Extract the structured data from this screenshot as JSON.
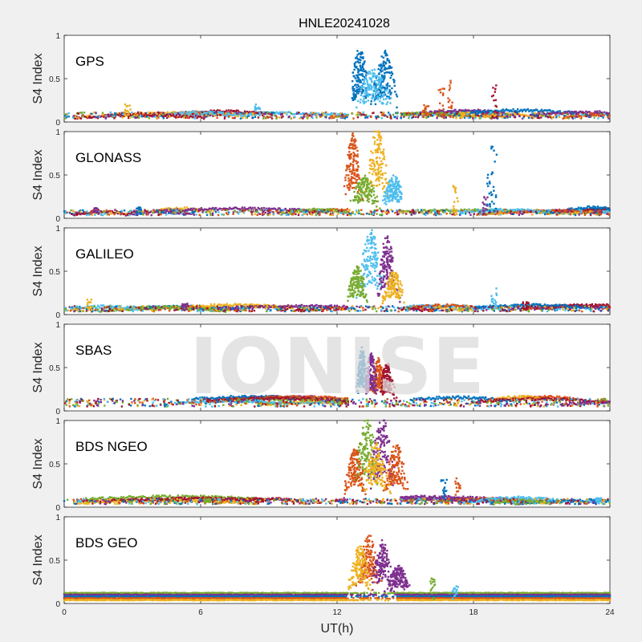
{
  "title": "HNLE20241028",
  "xlabel": "UT(h)",
  "watermark": "IONISE",
  "colors": [
    "#0072BD",
    "#D95319",
    "#EDB120",
    "#7E2F8E",
    "#77AC30",
    "#4DBEEE",
    "#A2142F"
  ],
  "chart_data": {
    "type": "scatter",
    "xlim": [
      0,
      24
    ],
    "xticks": [
      0,
      6,
      12,
      18,
      24
    ],
    "xtick_labels": [
      "0",
      "6",
      "12",
      "18",
      "24"
    ],
    "ylim": [
      0,
      1
    ],
    "yticks": [
      0,
      0.5,
      1
    ],
    "ytick_labels": [
      "0",
      "0.5",
      "1"
    ],
    "grid": false,
    "panels": [
      {
        "label": "GPS",
        "ylabel": "S4 Index",
        "baseline": 0.08,
        "storm": [
          {
            "center": 13.0,
            "width": 0.45,
            "amp": 0.65,
            "color": 0
          },
          {
            "center": 14.1,
            "width": 0.55,
            "amp": 0.62,
            "color": 0
          },
          {
            "center": 13.6,
            "width": 0.8,
            "amp": 0.45,
            "color": 5
          }
        ],
        "spikes": [
          {
            "x": 15.9,
            "peak": 0.2,
            "color": 1
          },
          {
            "x": 16.6,
            "peak": 0.42,
            "color": 1
          },
          {
            "x": 17.0,
            "peak": 0.48,
            "color": 1
          },
          {
            "x": 17.5,
            "peak": 0.12,
            "color": 2
          },
          {
            "x": 18.9,
            "peak": 0.45,
            "color": 6
          },
          {
            "x": 2.8,
            "peak": 0.22,
            "color": 2
          },
          {
            "x": 8.5,
            "peak": 0.22,
            "color": 5
          }
        ]
      },
      {
        "label": "GLONASS",
        "ylabel": "S4 Index",
        "baseline": 0.07,
        "storm": [
          {
            "center": 12.7,
            "width": 0.4,
            "amp": 0.75,
            "color": 1
          },
          {
            "center": 13.8,
            "width": 0.5,
            "amp": 0.85,
            "color": 2
          },
          {
            "center": 14.5,
            "width": 0.5,
            "amp": 0.35,
            "color": 5
          },
          {
            "center": 13.2,
            "width": 0.6,
            "amp": 0.35,
            "color": 4
          }
        ],
        "spikes": [
          {
            "x": 17.2,
            "peak": 0.38,
            "color": 2
          },
          {
            "x": 18.5,
            "peak": 0.25,
            "color": 3
          },
          {
            "x": 18.9,
            "peak": 0.85,
            "color": 0
          },
          {
            "x": 18.7,
            "peak": 0.55,
            "color": 0
          },
          {
            "x": 1.4,
            "peak": 0.12,
            "color": 3
          },
          {
            "x": 3.3,
            "peak": 0.14,
            "color": 0
          }
        ]
      },
      {
        "label": "GALILEO",
        "ylabel": "S4 Index",
        "baseline": 0.07,
        "storm": [
          {
            "center": 13.5,
            "width": 0.6,
            "amp": 0.75,
            "color": 5
          },
          {
            "center": 14.2,
            "width": 0.45,
            "amp": 0.7,
            "color": 3
          },
          {
            "center": 12.9,
            "width": 0.45,
            "amp": 0.4,
            "color": 4
          },
          {
            "center": 14.5,
            "width": 0.5,
            "amp": 0.35,
            "color": 2
          }
        ],
        "spikes": [
          {
            "x": 1.1,
            "peak": 0.18,
            "color": 2
          },
          {
            "x": 18.9,
            "peak": 0.35,
            "color": 5
          },
          {
            "x": 20.3,
            "peak": 0.15,
            "color": 6
          },
          {
            "x": 5.3,
            "peak": 0.14,
            "color": 3
          }
        ]
      },
      {
        "label": "SBAS",
        "ylabel": "S4 Index",
        "baseline": 0.1,
        "storm": [
          {
            "center": 13.1,
            "width": 0.25,
            "amp": 0.55,
            "color": 0
          },
          {
            "center": 13.8,
            "width": 0.35,
            "amp": 0.45,
            "color": 1
          },
          {
            "center": 14.2,
            "width": 0.35,
            "amp": 0.4,
            "color": 6
          },
          {
            "center": 13.5,
            "width": 0.3,
            "amp": 0.5,
            "color": 3
          }
        ],
        "spikes": []
      },
      {
        "label": "BDS NGEO",
        "ylabel": "S4 Index",
        "baseline": 0.07,
        "storm": [
          {
            "center": 13.3,
            "width": 0.55,
            "amp": 0.8,
            "color": 4
          },
          {
            "center": 14.0,
            "width": 0.6,
            "amp": 0.8,
            "color": 3
          },
          {
            "center": 12.8,
            "width": 0.45,
            "amp": 0.5,
            "color": 1
          },
          {
            "center": 14.6,
            "width": 0.5,
            "amp": 0.55,
            "color": 1
          },
          {
            "center": 13.7,
            "width": 0.6,
            "amp": 0.55,
            "color": 2
          }
        ],
        "spikes": [
          {
            "x": 16.7,
            "peak": 0.32,
            "color": 0
          },
          {
            "x": 17.3,
            "peak": 0.35,
            "color": 1
          },
          {
            "x": 6.3,
            "peak": 0.1,
            "color": 4
          },
          {
            "x": 23.5,
            "peak": 0.12,
            "color": 5
          }
        ]
      },
      {
        "label": "BDS GEO",
        "ylabel": "S4 Index",
        "baseline": 0.1,
        "storm": [
          {
            "center": 13.4,
            "width": 0.5,
            "amp": 0.6,
            "color": 1
          },
          {
            "center": 14.0,
            "width": 0.45,
            "amp": 0.55,
            "color": 3
          },
          {
            "center": 13.0,
            "width": 0.45,
            "amp": 0.5,
            "color": 2
          },
          {
            "center": 14.7,
            "width": 0.5,
            "amp": 0.3,
            "color": 3
          }
        ],
        "spikes": [
          {
            "x": 16.2,
            "peak": 0.32,
            "color": 4
          },
          {
            "x": 17.2,
            "peak": 0.2,
            "color": 5
          }
        ],
        "geo_lines": [
          {
            "level": 0.12,
            "color": 4
          },
          {
            "level": 0.1,
            "color": 3
          },
          {
            "level": 0.08,
            "color": 0
          },
          {
            "level": 0.06,
            "color": 1
          },
          {
            "level": 0.04,
            "color": 2
          }
        ]
      }
    ]
  }
}
